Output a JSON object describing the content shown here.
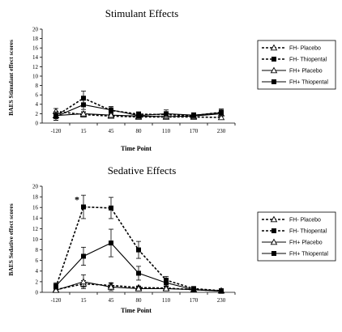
{
  "chart_data": [
    {
      "type": "line",
      "title": "Stimulant Effects",
      "xlabel": "Time Point",
      "ylabel": "BAES Stimulant effect scores",
      "categories": [
        "-120",
        "15",
        "45",
        "80",
        "110",
        "170",
        "230"
      ],
      "ylim": [
        0,
        20
      ],
      "yticks": [
        0,
        2,
        4,
        6,
        8,
        10,
        12,
        14,
        16,
        18,
        20
      ],
      "grid": false,
      "legend_position": "right",
      "annotations": [],
      "series": [
        {
          "name": "FH- Placebo",
          "values": [
            2.5,
            1.8,
            1.5,
            1.3,
            1.3,
            1.3,
            1.2
          ],
          "errors": [
            0.6,
            0.5,
            0.4,
            0.3,
            0.3,
            0.3,
            0.3
          ],
          "line": "dashed",
          "marker": "triangle-open"
        },
        {
          "name": "FH- Thiopental",
          "values": [
            1.5,
            5.3,
            2.7,
            1.9,
            1.8,
            1.6,
            2.3
          ],
          "errors": [
            0.9,
            1.5,
            0.8,
            0.5,
            0.5,
            0.5,
            0.7
          ],
          "line": "dashed",
          "marker": "square-filled"
        },
        {
          "name": "FH+ Placebo",
          "values": [
            1.6,
            2.0,
            1.7,
            1.5,
            1.4,
            1.5,
            2.0
          ],
          "errors": [
            0.4,
            0.4,
            0.4,
            0.3,
            0.3,
            0.3,
            0.4
          ],
          "line": "solid",
          "marker": "triangle-open"
        },
        {
          "name": "FH+ Thiopental",
          "values": [
            1.4,
            3.9,
            2.8,
            1.6,
            2.0,
            1.7,
            2.2
          ],
          "errors": [
            0.8,
            1.0,
            0.7,
            0.5,
            0.8,
            0.5,
            0.6
          ],
          "line": "solid",
          "marker": "square-filled"
        }
      ]
    },
    {
      "type": "line",
      "title": "Sedative Effects",
      "xlabel": "Time Point",
      "ylabel": "BAES Sedative effect scores",
      "categories": [
        "-120",
        "15",
        "45",
        "80",
        "110",
        "170",
        "230"
      ],
      "ylim": [
        0,
        20
      ],
      "yticks": [
        0,
        2,
        4,
        6,
        8,
        10,
        12,
        14,
        16,
        18,
        20
      ],
      "grid": false,
      "legend_position": "right",
      "annotations": [
        {
          "text": "*",
          "category": "15",
          "y": 17.5
        }
      ],
      "series": [
        {
          "name": "FH- Placebo",
          "values": [
            0.5,
            1.6,
            1.3,
            0.9,
            0.8,
            0.5,
            0.3
          ],
          "errors": [
            0.4,
            0.6,
            0.5,
            0.3,
            0.3,
            0.2,
            0.2
          ],
          "line": "dashed",
          "marker": "triangle-open"
        },
        {
          "name": "FH- Thiopental",
          "values": [
            1.0,
            16.1,
            15.9,
            8.0,
            2.3,
            0.7,
            0.3
          ],
          "errors": [
            0.6,
            2.2,
            2.0,
            1.6,
            0.7,
            0.4,
            0.3
          ],
          "line": "dashed",
          "marker": "square-filled"
        },
        {
          "name": "FH+ Placebo",
          "values": [
            0.4,
            2.0,
            1.0,
            0.7,
            0.7,
            0.5,
            0.3
          ],
          "errors": [
            0.3,
            1.3,
            0.7,
            0.4,
            0.3,
            0.2,
            0.2
          ],
          "line": "solid",
          "marker": "triangle-open"
        },
        {
          "name": "FH+ Thiopental",
          "values": [
            1.2,
            6.8,
            9.3,
            3.6,
            1.8,
            0.5,
            0.2
          ],
          "errors": [
            0.6,
            1.7,
            2.6,
            1.3,
            0.6,
            0.3,
            0.2
          ],
          "line": "solid",
          "marker": "square-filled"
        }
      ]
    }
  ]
}
